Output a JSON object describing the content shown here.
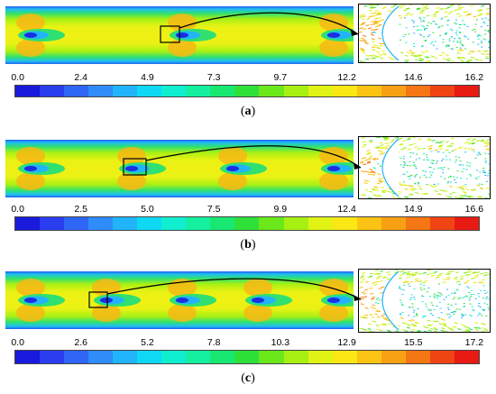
{
  "panels": [
    {
      "id": "a",
      "caption_open": "(",
      "caption_letter": "a",
      "caption_close": ")",
      "ticks": [
        "0.0",
        "2.4",
        "4.9",
        "7.3",
        "9.7",
        "12.2",
        "14.6",
        "16.2"
      ],
      "obstacles": 3
    },
    {
      "id": "b",
      "caption_open": "(",
      "caption_letter": "b",
      "caption_close": ")",
      "ticks": [
        "0.0",
        "2.5",
        "5.0",
        "7.5",
        "9.9",
        "12.4",
        "14.9",
        "16.6"
      ],
      "obstacles": 4
    },
    {
      "id": "c",
      "caption_open": "(",
      "caption_letter": "c",
      "caption_close": ")",
      "ticks": [
        "0.0",
        "2.6",
        "5.2",
        "7.8",
        "10.3",
        "12.9",
        "15.5",
        "17.2"
      ],
      "obstacles": 5
    }
  ],
  "colorbar_colors": [
    "#1a1adc",
    "#2a3ef0",
    "#2f66f5",
    "#2f8cf8",
    "#22b4fa",
    "#0fd8f5",
    "#10eed0",
    "#14f0a0",
    "#18e872",
    "#30e03a",
    "#6ae81a",
    "#a8f014",
    "#e0f314",
    "#fbe714",
    "#fbc414",
    "#f7a014",
    "#f47614",
    "#f04414",
    "#e81a14"
  ]
}
